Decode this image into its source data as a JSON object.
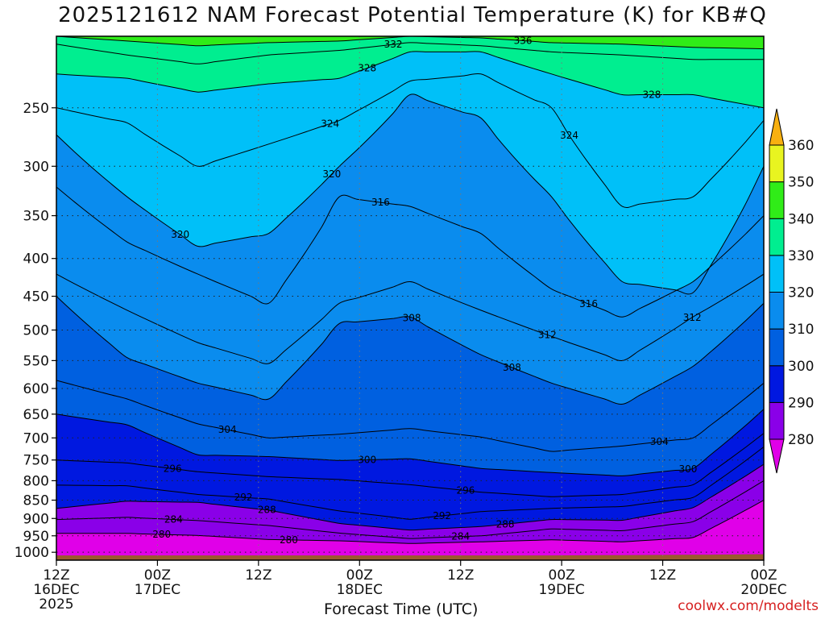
{
  "title": "2025121612 NAM Forecast Potential Temperature (K) for KB#Q",
  "credit": "coolwx.com/modelts",
  "chart_data": {
    "type": "contour",
    "title": "2025121612 NAM Forecast Potential Temperature (K) for KB#Q",
    "xlabel": "Forecast Time (UTC)",
    "ylabel": "",
    "x_ticks": [
      {
        "hour": 0,
        "label": "12Z",
        "sub": "16DEC",
        "sub2": "2025"
      },
      {
        "hour": 12,
        "label": "00Z",
        "sub": "17DEC",
        "sub2": ""
      },
      {
        "hour": 24,
        "label": "12Z",
        "sub": "",
        "sub2": ""
      },
      {
        "hour": 36,
        "label": "00Z",
        "sub": "18DEC",
        "sub2": ""
      },
      {
        "hour": 48,
        "label": "12Z",
        "sub": "",
        "sub2": ""
      },
      {
        "hour": 60,
        "label": "00Z",
        "sub": "19DEC",
        "sub2": ""
      },
      {
        "hour": 72,
        "label": "12Z",
        "sub": "",
        "sub2": ""
      },
      {
        "hour": 84,
        "label": "00Z",
        "sub": "20DEC",
        "sub2": ""
      }
    ],
    "xlim_hours": [
      0,
      84
    ],
    "y_ticks": [
      250,
      300,
      350,
      400,
      450,
      500,
      550,
      600,
      650,
      700,
      750,
      800,
      850,
      900,
      950,
      1000
    ],
    "ylim_hpa": [
      200,
      1025
    ],
    "y_scale": "log",
    "grid": true,
    "colorbar": {
      "placement": "right",
      "labels": [
        "280",
        "290",
        "300",
        "310",
        "320",
        "330",
        "340",
        "350",
        "360"
      ],
      "colors": [
        "#e000e8",
        "#8a00e8",
        "#0018e0",
        "#0060e0",
        "#0a8cee",
        "#00c0f8",
        "#00ee90",
        "#30ec18",
        "#e8f420",
        "#f8b010"
      ]
    },
    "isentropes": [
      {
        "theta": 280,
        "p": [
          943,
          943,
          949,
          961,
          965,
          973,
          968,
          962,
          968,
          955,
          850
        ],
        "label_at": [
          12.5,
          27.6
        ]
      },
      {
        "theta": 284,
        "p": [
          903,
          897,
          906,
          920,
          942,
          958,
          950,
          930,
          935,
          909,
          800
        ],
        "label_at": [
          13.9,
          48
        ]
      },
      {
        "theta": 288,
        "p": [
          872,
          853,
          856,
          877,
          914,
          933,
          923,
          903,
          905,
          870,
          760
        ],
        "label_at": [
          25,
          53.3
        ]
      },
      {
        "theta": 292,
        "p": [
          811,
          813,
          835,
          847,
          879,
          902,
          881,
          872,
          867,
          843,
          720
        ],
        "label_at": [
          22.2,
          45.8
        ]
      },
      {
        "theta": 296,
        "p": [
          750,
          757,
          778,
          790,
          797,
          810,
          829,
          841,
          835,
          810,
          690
        ],
        "label_at": [
          13.8,
          48.6
        ]
      },
      {
        "theta": 300,
        "p": [
          650,
          672,
          738,
          742,
          751,
          747,
          770,
          780,
          788,
          770,
          640
        ],
        "label_at": [
          36.9,
          75
        ]
      },
      {
        "theta": 304,
        "p": [
          585,
          620,
          670,
          700,
          692,
          680,
          698,
          730,
          718,
          700,
          590
        ],
        "label_at": [
          20.3,
          71.6
        ]
      },
      {
        "theta": 308,
        "p": [
          450,
          545,
          590,
          620,
          490,
          480,
          540,
          590,
          630,
          560,
          460
        ],
        "label_at": [
          42.2,
          54.1
        ]
      },
      {
        "theta": 312,
        "p": [
          420,
          470,
          520,
          555,
          460,
          430,
          470,
          510,
          550,
          480,
          420
        ],
        "label_at": [
          58.3,
          75.5
        ]
      },
      {
        "theta": 316,
        "p": [
          320,
          380,
          420,
          460,
          330,
          340,
          370,
          440,
          480,
          430,
          350
        ],
        "label_at": [
          38.5,
          63.2
        ]
      },
      {
        "theta": 320,
        "p": [
          272,
          330,
          385,
          370,
          300,
          240,
          258,
          330,
          430,
          445,
          300
        ],
        "label_at": [
          14.7,
          32.7
        ]
      },
      {
        "theta": 324,
        "p": [
          250,
          262,
          300,
          280,
          260,
          230,
          225,
          250,
          340,
          330,
          260
        ],
        "label_at": [
          32.5,
          60.9
        ]
      },
      {
        "theta": 328,
        "p": [
          225,
          228,
          238,
          232,
          228,
          210,
          210,
          225,
          240,
          240,
          250
        ],
        "label_at": [
          36.9,
          70.7
        ]
      },
      {
        "theta": 332,
        "p": [
          205,
          212,
          218,
          212,
          209,
          204,
          206,
          210,
          212,
          215,
          215
        ],
        "label_at": [
          40
        ]
      },
      {
        "theta": 336,
        "p": [
          200,
          203,
          206,
          204,
          203,
          200,
          201,
          204,
          205,
          207,
          208
        ],
        "label_at": [
          55.4
        ]
      }
    ],
    "surface_pressure_hpa": [
      1010,
      1010,
      1010,
      1010,
      1010,
      1010,
      1010,
      1010,
      1009,
      1008,
      1006
    ]
  },
  "labels": {
    "xlabel": "Forecast Time (UTC)"
  }
}
